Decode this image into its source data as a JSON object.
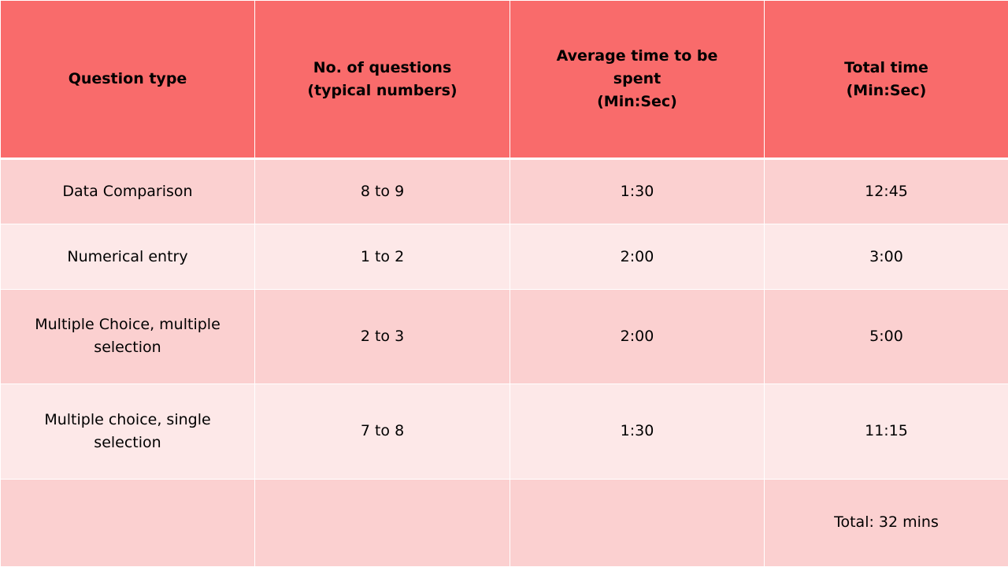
{
  "table": {
    "header": [
      [
        "Question type"
      ],
      [
        "No. of questions",
        "(typical numbers)"
      ],
      [
        "Average time to be spent",
        "(Min:Sec)"
      ],
      [
        "Total time",
        "(Min:Sec)"
      ]
    ],
    "rows": [
      [
        "Data Comparison",
        "8 to 9",
        "1:30",
        "12:45"
      ],
      [
        "Numerical entry",
        "1 to 2",
        "2:00",
        "3:00"
      ],
      [
        "Multiple Choice, multiple selection",
        "2 to 3",
        "2:00",
        "5:00"
      ],
      [
        "Multiple choice, single selection",
        "7 to 8",
        "1:30",
        "11:15"
      ]
    ],
    "total": "Total: 32 mins"
  }
}
